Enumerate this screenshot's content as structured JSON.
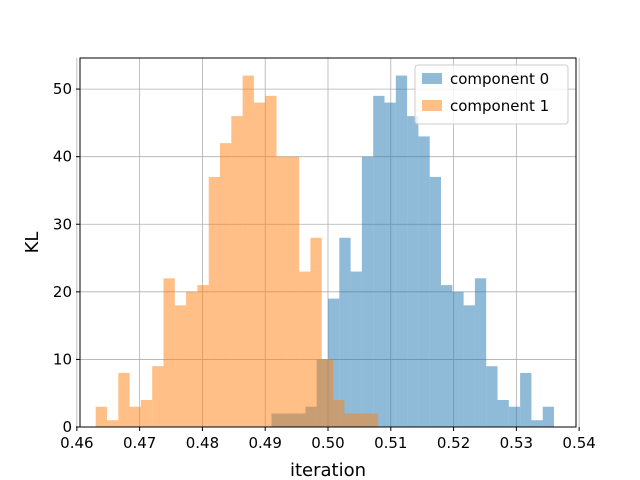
{
  "chart_data": {
    "type": "histogram",
    "xlabel": "iteration",
    "ylabel": "KL",
    "xlim": [
      0.4605,
      0.5395
    ],
    "ylim": [
      0,
      54.6
    ],
    "xticks": [
      0.46,
      0.47,
      0.48,
      0.49,
      0.5,
      0.51,
      0.52,
      0.53,
      0.54
    ],
    "xtick_labels": [
      "0.46",
      "0.47",
      "0.48",
      "0.49",
      "0.50",
      "0.51",
      "0.52",
      "0.53",
      "0.54"
    ],
    "yticks": [
      0,
      10,
      20,
      30,
      40,
      50
    ],
    "ytick_labels": [
      "0",
      "10",
      "20",
      "30",
      "40",
      "50"
    ],
    "grid": true,
    "legend_position": "top-right",
    "series": [
      {
        "name": "component 0",
        "color": "#1f77b4",
        "alpha": 0.5,
        "bin_edges": [
          0.491,
          0.4928,
          0.4946,
          0.4964,
          0.4982,
          0.5,
          0.5018,
          0.5036,
          0.5054,
          0.5072,
          0.509,
          0.5108,
          0.5126,
          0.5144,
          0.5162,
          0.518,
          0.5198,
          0.5216,
          0.5234,
          0.5252,
          0.527,
          0.5288,
          0.5306,
          0.5324,
          0.5342,
          0.536
        ],
        "counts": [
          2,
          2,
          2,
          3,
          10,
          19,
          28,
          23,
          40,
          49,
          48,
          52,
          46,
          43,
          37,
          21,
          20,
          18,
          22,
          9,
          4,
          3,
          8,
          1,
          3
        ]
      },
      {
        "name": "component 1",
        "color": "#ff7f0e",
        "alpha": 0.5,
        "bin_edges": [
          0.463,
          0.4648,
          0.4666,
          0.4684,
          0.4702,
          0.472,
          0.4738,
          0.4756,
          0.4774,
          0.4792,
          0.481,
          0.4828,
          0.4846,
          0.4864,
          0.4882,
          0.49,
          0.4918,
          0.4936,
          0.4954,
          0.4972,
          0.499,
          0.5008,
          0.5026,
          0.5044,
          0.5062,
          0.508
        ],
        "counts": [
          3,
          1,
          8,
          3,
          4,
          9,
          22,
          18,
          20,
          21,
          37,
          42,
          46,
          52,
          48,
          49,
          40,
          40,
          23,
          28,
          10,
          4,
          2,
          2,
          2
        ]
      }
    ]
  }
}
